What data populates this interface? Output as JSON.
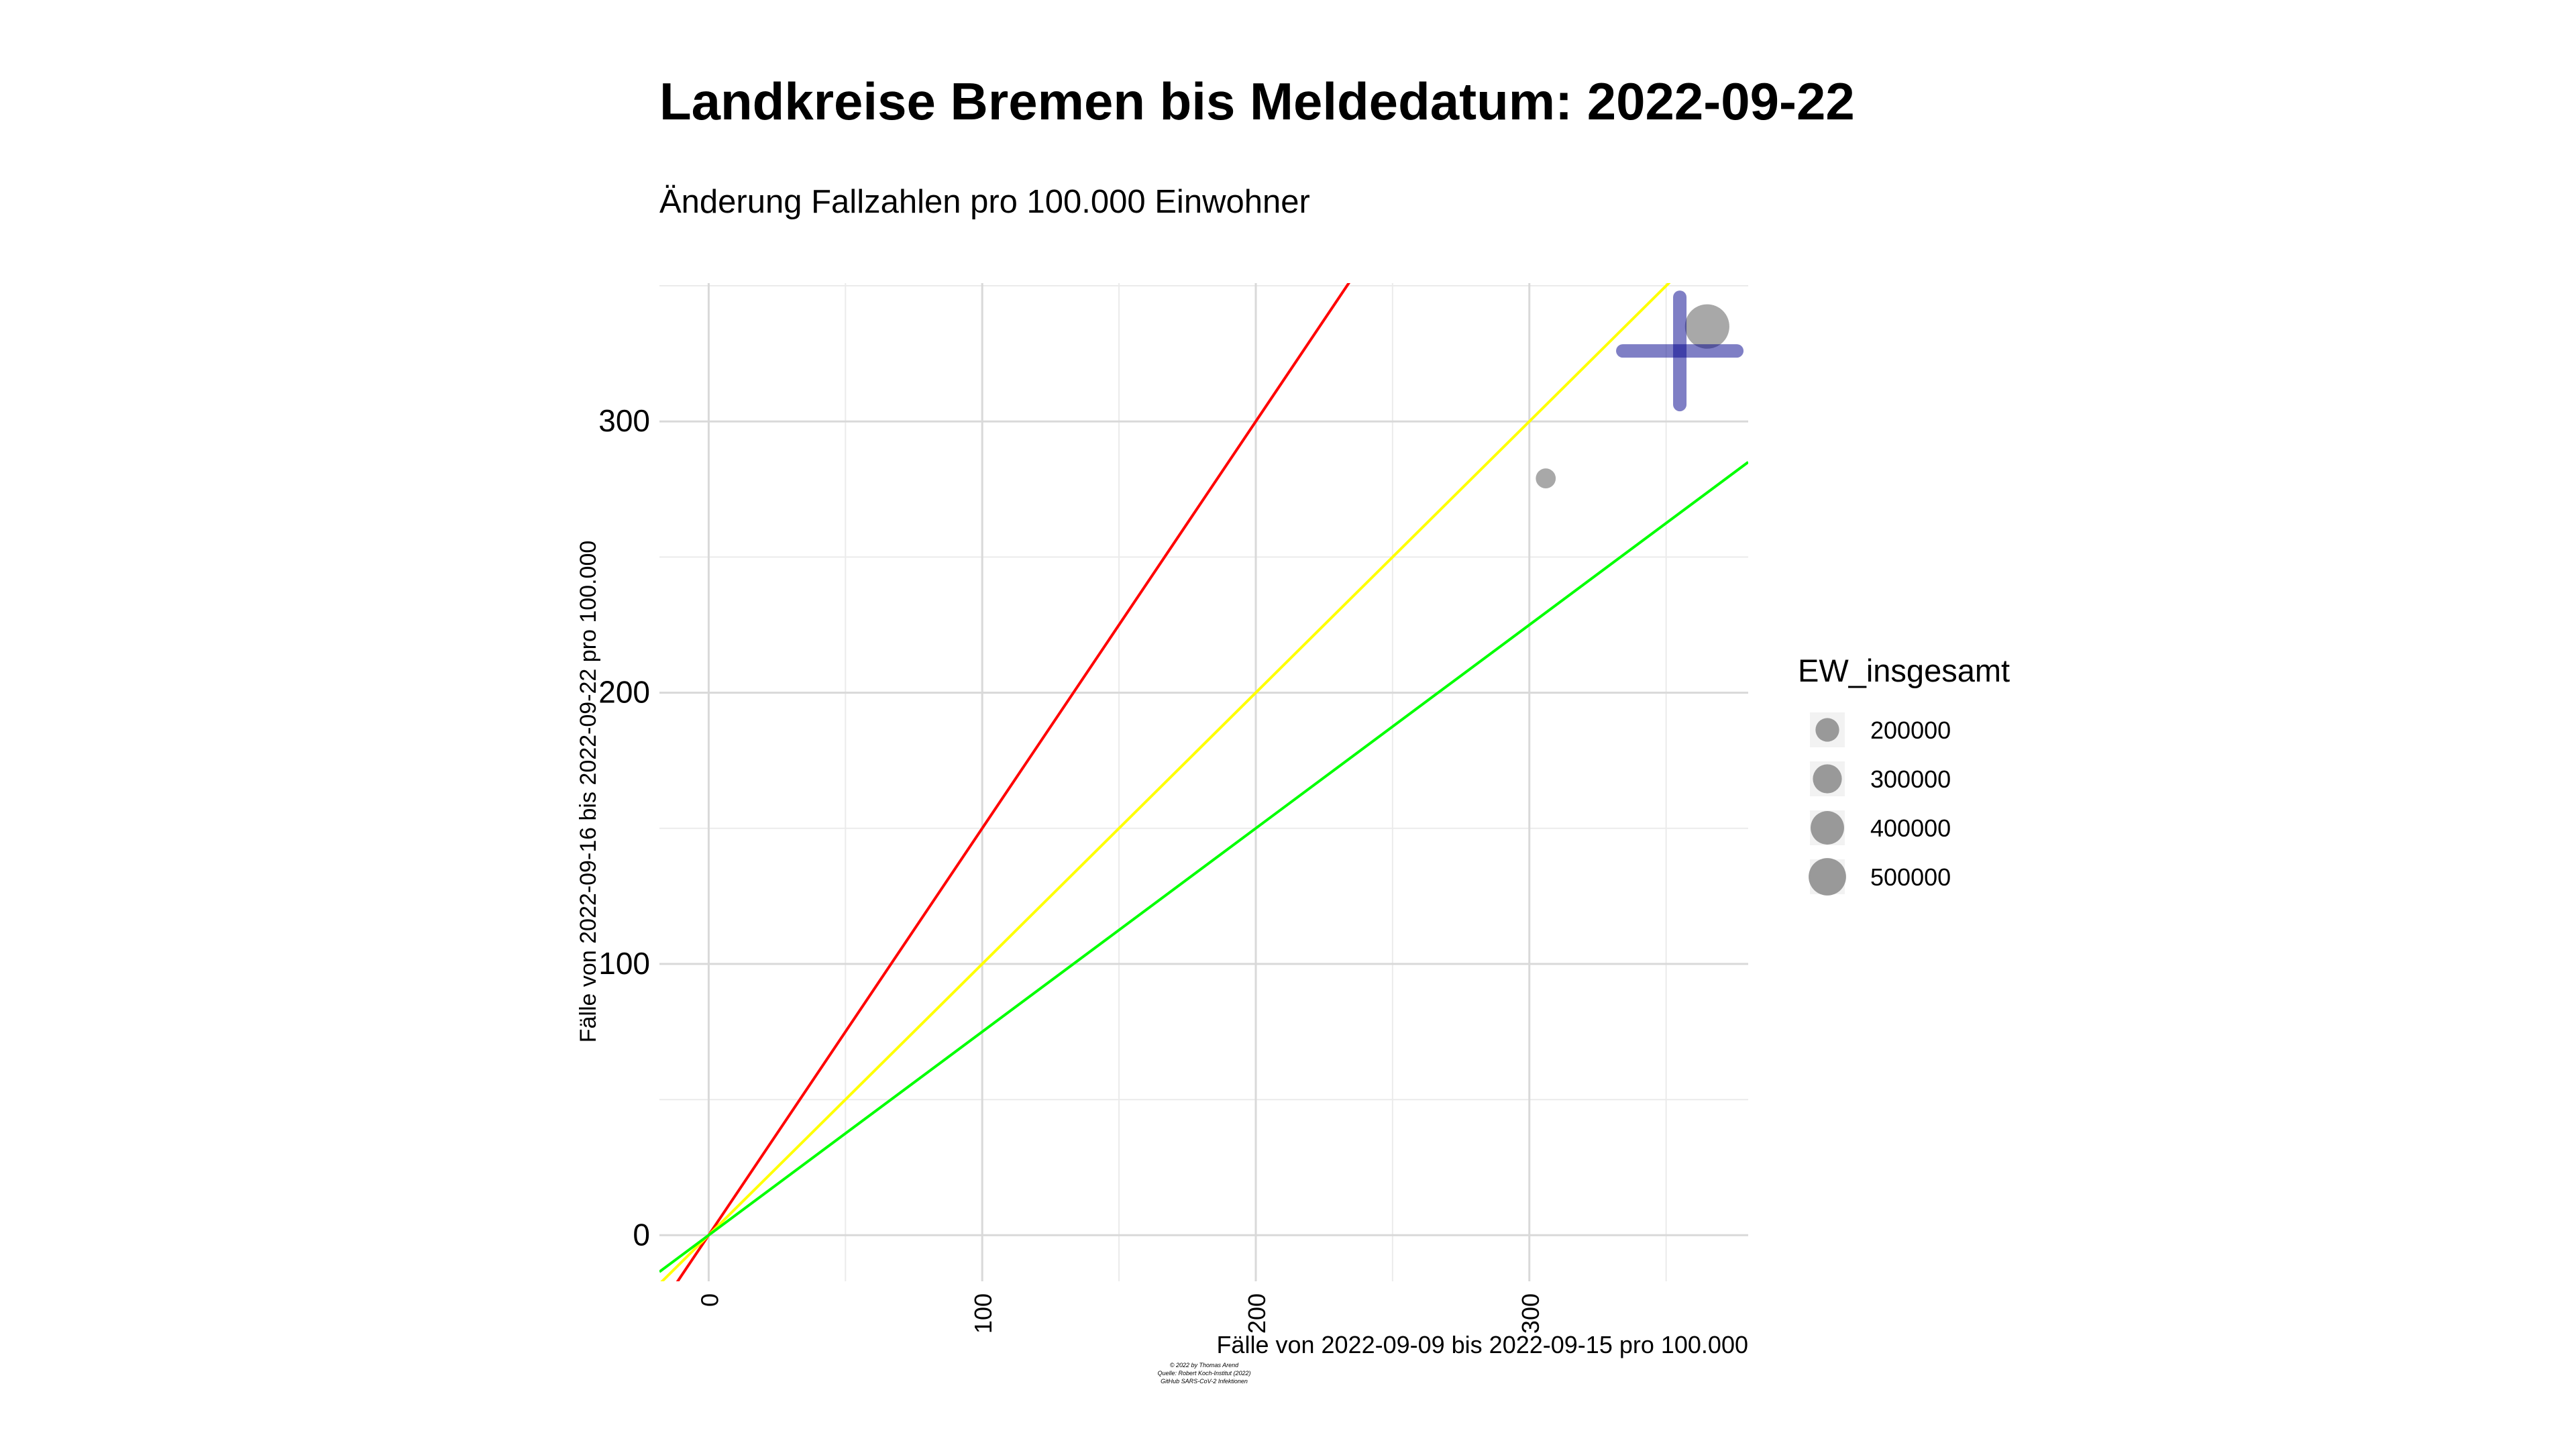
{
  "chart_data": {
    "type": "scatter",
    "title": "Landkreise Bremen bis Meldedatum: 2022-09-22",
    "subtitle": "Änderung Fallzahlen pro 100.000 Einwohner",
    "xlabel": "Fälle von 2022-09-09 bis 2022-09-15 pro 100.000",
    "ylabel": "Fälle von 2022-09-16 bis 2022-09-22 pro 100.000",
    "xlim": [
      -18,
      380
    ],
    "ylim": [
      -17,
      351
    ],
    "x_ticks": [
      "0",
      "100",
      "200",
      "300"
    ],
    "x_tick_values": [
      0,
      100,
      200,
      300
    ],
    "y_ticks": [
      "0",
      "100",
      "200",
      "300"
    ],
    "y_tick_values": [
      0,
      100,
      200,
      300
    ],
    "grid": true,
    "reference_lines": [
      {
        "slope": 1.5,
        "color": "#ff0000"
      },
      {
        "slope": 1.0,
        "color": "#ffff00"
      },
      {
        "slope": 0.75,
        "color": "#00ff00"
      }
    ],
    "points": [
      {
        "x": 365,
        "y": 335,
        "size": 570000
      },
      {
        "x": 306,
        "y": 279,
        "size": 115000
      }
    ],
    "crosshair": {
      "x": 355,
      "y": 326,
      "color": "#00008b"
    },
    "point_color": "#999999",
    "legend": {
      "title": "EW_insgesamt",
      "position": "right",
      "items": [
        "200000",
        "300000",
        "400000",
        "500000"
      ],
      "item_values": [
        200000,
        300000,
        400000,
        500000
      ]
    },
    "caption": [
      "© 2022 by Thomas Arend",
      "Quelle: Robert Koch-Institut (2022)",
      "GitHub SARS-CoV-2 Infektionen"
    ]
  }
}
